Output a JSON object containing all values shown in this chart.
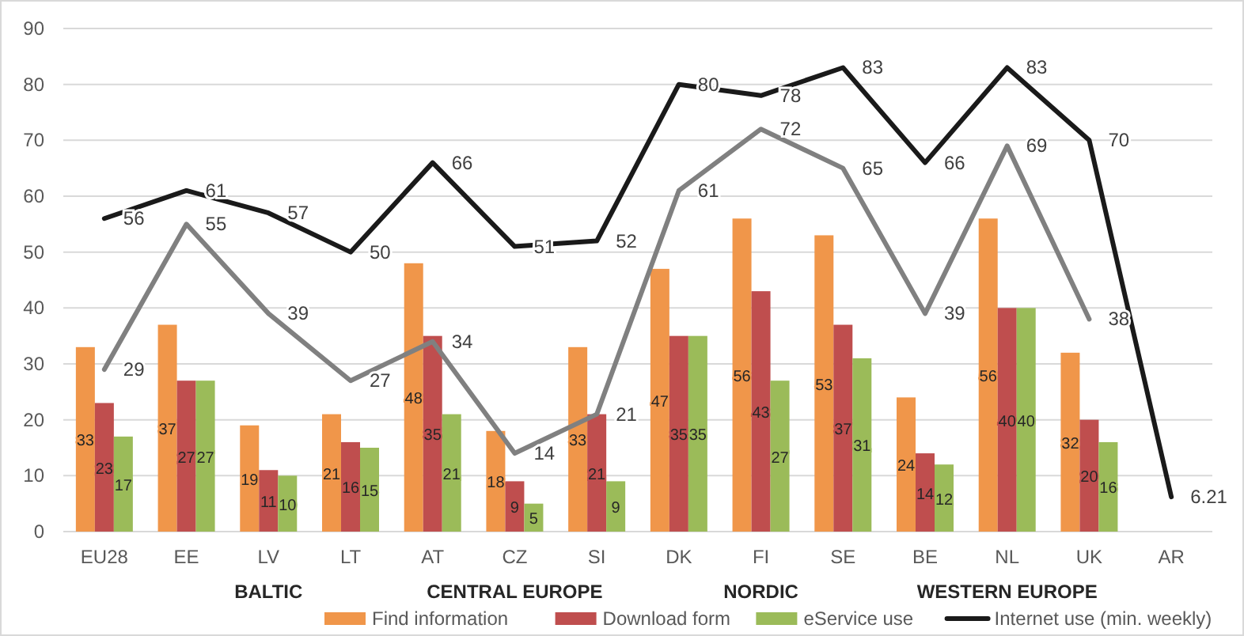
{
  "chart_data": {
    "type": "bar",
    "categories": [
      "EU28",
      "EE",
      "LV",
      "LT",
      "AT",
      "CZ",
      "SI",
      "DK",
      "FI",
      "SE",
      "BE",
      "NL",
      "UK",
      "AR"
    ],
    "series": [
      {
        "name": "Find information",
        "color": "#f0964a",
        "values": [
          33,
          37,
          19,
          21,
          48,
          18,
          33,
          47,
          56,
          53,
          24,
          56,
          32,
          null
        ]
      },
      {
        "name": "Download form",
        "color": "#bf4e4e",
        "values": [
          23,
          27,
          11,
          16,
          35,
          9,
          21,
          35,
          43,
          37,
          14,
          40,
          20,
          null
        ]
      },
      {
        "name": "eService use",
        "color": "#9bbb59",
        "values": [
          17,
          27,
          10,
          15,
          21,
          5,
          9,
          35,
          27,
          31,
          12,
          40,
          16,
          null
        ]
      },
      {
        "name": "Internet use (min. weekly)",
        "type": "line",
        "color": "#1a1a1a",
        "values": [
          56,
          61,
          57,
          50,
          66,
          51,
          52,
          80,
          78,
          83,
          66,
          83,
          70,
          6.21
        ]
      },
      {
        "type": "line",
        "color": "#808080",
        "values": [
          29,
          55,
          39,
          27,
          34,
          14,
          21,
          61,
          72,
          65,
          39,
          69,
          38,
          null
        ]
      }
    ],
    "ylim": [
      0,
      90
    ],
    "yticks": [
      0,
      10,
      20,
      30,
      40,
      50,
      60,
      70,
      80,
      90
    ],
    "grid": "y",
    "legend": "bottom",
    "data_labels": true,
    "annotations": [
      "BALTIC",
      "CENTRAL EUROPE",
      "NORDIC",
      "WESTERN EUROPE"
    ]
  }
}
